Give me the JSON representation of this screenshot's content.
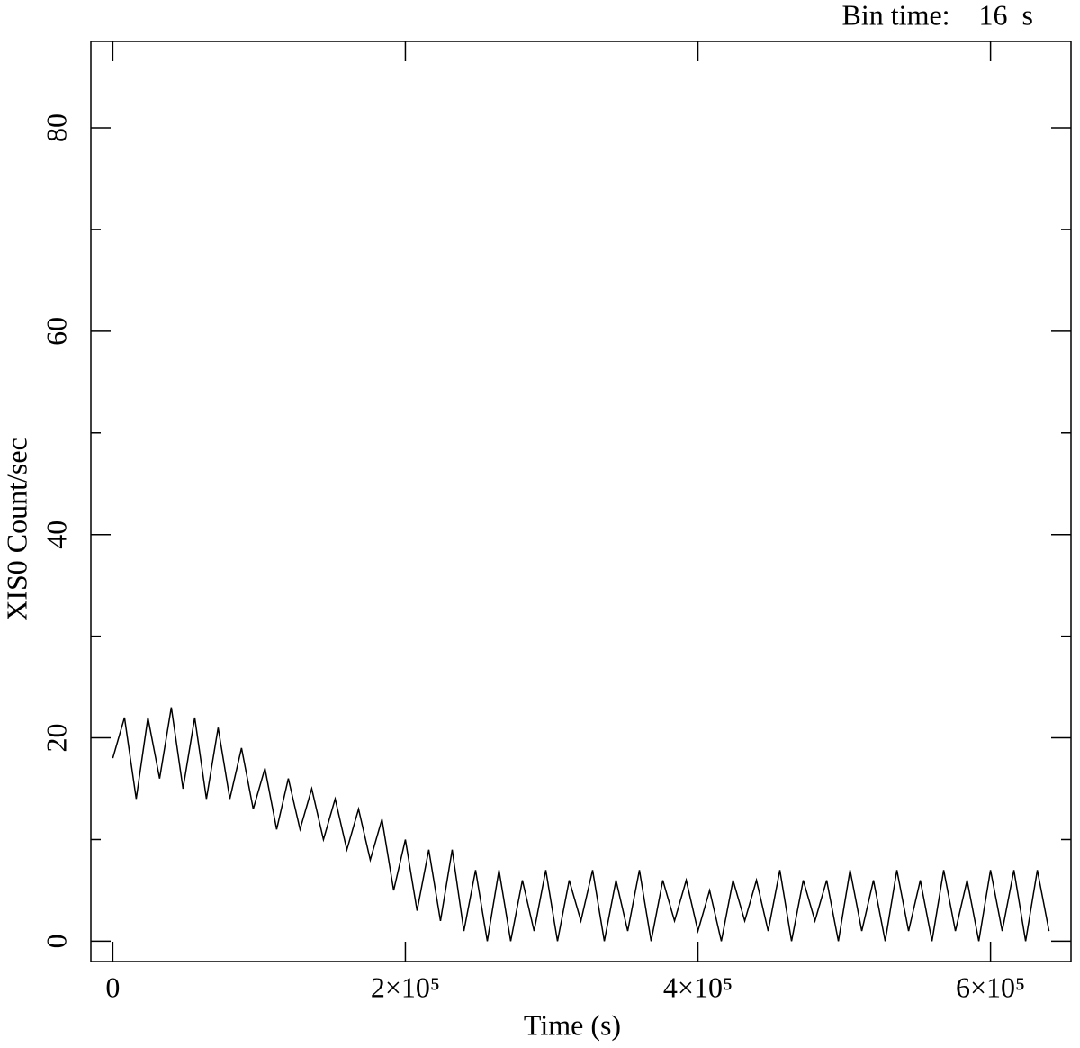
{
  "chart_data": {
    "type": "line",
    "annotation": "Bin time:    16  s",
    "xlabel": "Time (s)",
    "ylabel": "XIS0 Count/sec",
    "x": [
      0,
      8000,
      16000,
      24000,
      32000,
      40000,
      48000,
      56000,
      64000,
      72000,
      80000,
      88000,
      96000,
      104000,
      112000,
      120000,
      128000,
      136000,
      144000,
      152000,
      160000,
      168000,
      176000,
      184000,
      192000,
      200000,
      208000,
      216000,
      224000,
      232000,
      240000,
      248000,
      256000,
      264000,
      272000,
      280000,
      288000,
      296000,
      304000,
      312000,
      320000,
      328000,
      336000,
      344000,
      352000,
      360000,
      368000,
      376000,
      384000,
      392000,
      400000,
      408000,
      416000,
      424000,
      432000,
      440000,
      448000,
      456000,
      464000,
      472000,
      480000,
      488000,
      496000,
      504000,
      512000,
      520000,
      528000,
      536000,
      544000,
      552000,
      560000,
      568000,
      576000,
      584000,
      592000,
      600000,
      608000,
      616000,
      624000,
      632000,
      640000
    ],
    "series": [
      {
        "name": "XIS0",
        "color": "#000000",
        "values": [
          18,
          22,
          14,
          22,
          16,
          23,
          15,
          22,
          14,
          21,
          14,
          19,
          13,
          17,
          11,
          16,
          11,
          15,
          10,
          14,
          9,
          13,
          8,
          12,
          5,
          10,
          3,
          9,
          2,
          9,
          1,
          7,
          0,
          7,
          0,
          6,
          1,
          7,
          0,
          6,
          2,
          7,
          0,
          6,
          1,
          7,
          0,
          6,
          2,
          6,
          1,
          5,
          0,
          6,
          2,
          6,
          1,
          7,
          0,
          6,
          2,
          6,
          0,
          7,
          1,
          6,
          0,
          7,
          1,
          6,
          0,
          7,
          1,
          6,
          0,
          7,
          1,
          7,
          0,
          7,
          1
        ]
      }
    ],
    "xlim": [
      -15000,
      655000
    ],
    "ylim": [
      -2,
      88.5
    ],
    "xticks": [
      0,
      {
        "value": 200000,
        "label": "2×10⁵"
      },
      {
        "value": 400000,
        "label": "4×10⁵"
      },
      {
        "value": 600000,
        "label": "6×10⁵"
      }
    ],
    "yticks": [
      0,
      20,
      40,
      60,
      80
    ],
    "yminorticks": [
      10,
      30,
      50,
      70
    ]
  }
}
